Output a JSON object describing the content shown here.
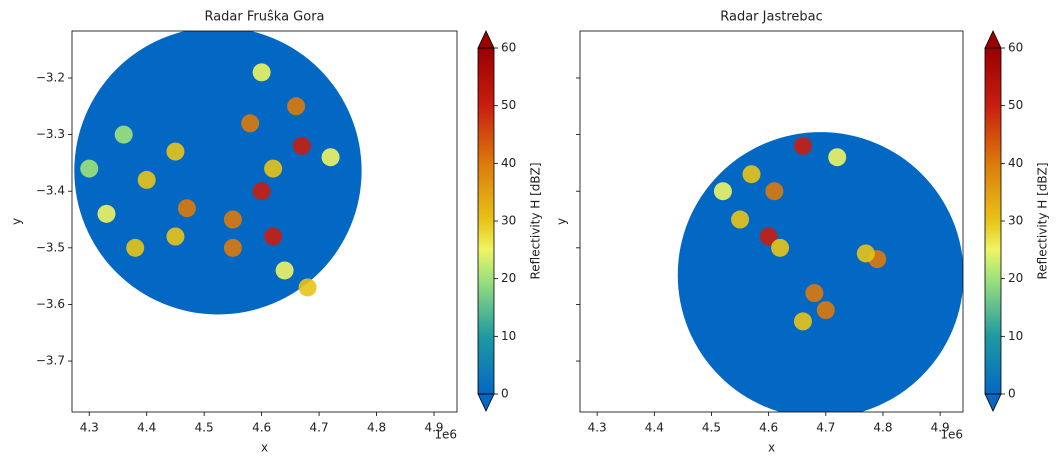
{
  "chart_data": [
    {
      "type": "radar",
      "title": "Radar Fruŝka Gora",
      "x_label": "x",
      "y_label": "y",
      "x_offset": "1e6",
      "xlim": [
        4.27,
        4.94
      ],
      "ylim": [
        -3.79,
        -3.117
      ],
      "xticks": [
        4.3,
        4.4,
        4.5,
        4.6,
        4.7,
        4.8,
        4.9
      ],
      "yticks": [
        {
          "value": -3.2,
          "label": "−3.2"
        },
        {
          "value": -3.3,
          "label": "−3.3"
        },
        {
          "value": -3.4,
          "label": "−3.4"
        },
        {
          "value": -3.5,
          "label": "−3.5"
        },
        {
          "value": -3.6,
          "label": "−3.6"
        },
        {
          "value": -3.7,
          "label": "−3.7"
        }
      ],
      "coverage": {
        "x": 4.524,
        "y": -3.364,
        "radius": 0.25,
        "color": "#0368c4"
      },
      "x": [
        4.3,
        4.33,
        4.36,
        4.4,
        4.45,
        4.47,
        4.38,
        4.45,
        4.55,
        4.6,
        4.62,
        4.55,
        4.66,
        4.67,
        4.58,
        4.6,
        4.68,
        4.64,
        4.62,
        4.72
      ],
      "y": [
        -3.36,
        -3.44,
        -3.3,
        -3.38,
        -3.33,
        -3.43,
        -3.5,
        -3.48,
        -3.45,
        -3.4,
        -3.48,
        -3.5,
        -3.25,
        -3.32,
        -3.28,
        -3.19,
        -3.57,
        -3.54,
        -3.36,
        -3.34
      ],
      "values": [
        22,
        25,
        24,
        30,
        35,
        40,
        30,
        35,
        45,
        55,
        55,
        45,
        45,
        50,
        40,
        25,
        35,
        25,
        35,
        25
      ],
      "colorbar_label": "Reflectivity H [dBZ]",
      "clim": [
        0,
        60
      ],
      "cticks": [
        0,
        10,
        20,
        30,
        40,
        50,
        60
      ]
    },
    {
      "type": "radar",
      "title": "Radar Jastrebac",
      "x_label": "x",
      "y_label": "y",
      "x_offset": "1e6",
      "xlim": [
        4.27,
        4.94
      ],
      "ylim": [
        -3.79,
        -3.117
      ],
      "xticks": [
        4.3,
        4.4,
        4.5,
        4.6,
        4.7,
        4.8,
        4.9
      ],
      "yticks": [
        -3.2,
        -3.3,
        -3.4,
        -3.5,
        -3.6,
        -3.7
      ],
      "coverage": {
        "x": 4.691,
        "y": -3.548,
        "radius": 0.25,
        "color": "#0368c4"
      },
      "x": [
        4.66,
        4.61,
        4.55,
        4.6,
        4.52,
        4.57,
        4.68,
        4.7,
        4.66,
        4.79,
        4.77,
        4.72,
        4.62
      ],
      "y": [
        -3.32,
        -3.4,
        -3.45,
        -3.48,
        -3.4,
        -3.37,
        -3.58,
        -3.61,
        -3.63,
        -3.52,
        -3.51,
        -3.34,
        -3.5
      ],
      "values": [
        50,
        40,
        35,
        50,
        25,
        30,
        45,
        40,
        30,
        45,
        35,
        25,
        30
      ],
      "colorbar_label": "Reflectivity H [dBZ]",
      "clim": [
        0,
        60
      ],
      "cticks": [
        0,
        10,
        20,
        30,
        40,
        50,
        60
      ]
    }
  ],
  "colormap": [
    {
      "value": 0,
      "color": "#0368c4"
    },
    {
      "value": 10,
      "color": "#1e9aa0"
    },
    {
      "value": 20,
      "color": "#9ee27c"
    },
    {
      "value": 25,
      "color": "#eef564"
    },
    {
      "value": 30,
      "color": "#e8c418"
    },
    {
      "value": 40,
      "color": "#dc7a0c"
    },
    {
      "value": 50,
      "color": "#c81e10"
    },
    {
      "value": 60,
      "color": "#9a0000"
    }
  ]
}
